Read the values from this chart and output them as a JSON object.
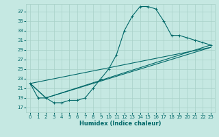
{
  "xlabel": "Humidex (Indice chaleur)",
  "xlim": [
    -0.5,
    23.5
  ],
  "ylim": [
    16.0,
    38.5
  ],
  "xticks": [
    0,
    1,
    2,
    3,
    4,
    5,
    6,
    7,
    8,
    9,
    10,
    11,
    12,
    13,
    14,
    15,
    16,
    17,
    18,
    19,
    20,
    21,
    22,
    23
  ],
  "yticks": [
    17,
    19,
    21,
    23,
    25,
    27,
    29,
    31,
    33,
    35,
    37
  ],
  "bg_color": "#c5e8e2",
  "grid_color": "#a8d0c8",
  "line_color": "#006868",
  "lines": [
    {
      "x": [
        0,
        1,
        2,
        3,
        4,
        5,
        6,
        7,
        8,
        9,
        10,
        11,
        12,
        13,
        14,
        15,
        16,
        17,
        18,
        19,
        20,
        21,
        22,
        23
      ],
      "y": [
        22,
        19,
        19,
        18,
        18,
        18.5,
        18.5,
        19,
        21,
        23,
        25,
        28,
        33,
        36,
        38,
        38,
        37.5,
        35,
        32,
        32,
        31.5,
        31,
        30.5,
        30
      ],
      "marker": true
    },
    {
      "x": [
        0,
        2,
        23
      ],
      "y": [
        22,
        19,
        30
      ],
      "marker": false
    },
    {
      "x": [
        0,
        2,
        23
      ],
      "y": [
        22,
        19,
        29.5
      ],
      "marker": false
    },
    {
      "x": [
        0,
        23
      ],
      "y": [
        22,
        29.5
      ],
      "marker": false
    }
  ]
}
